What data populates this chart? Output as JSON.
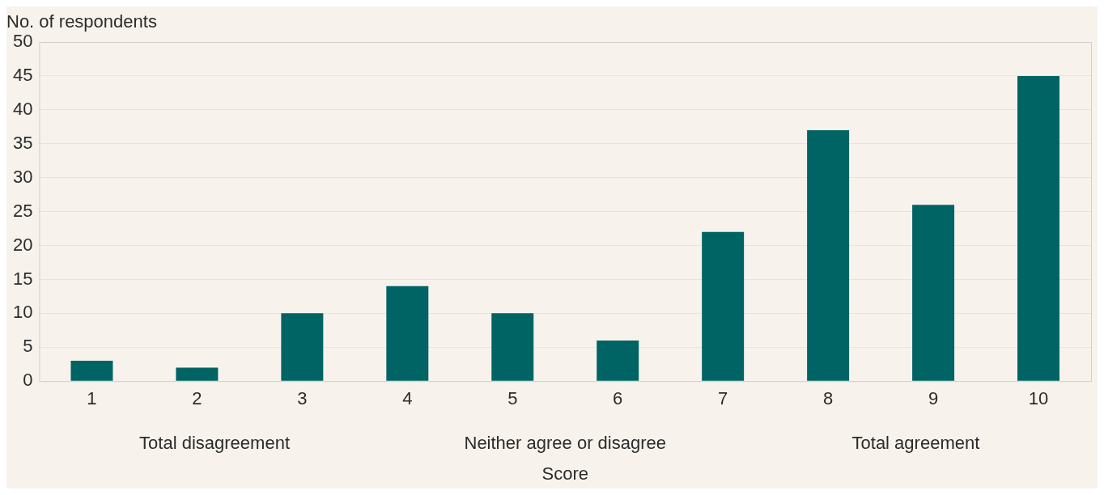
{
  "chart_data": {
    "type": "bar",
    "xlabel": "Score",
    "ylabel": "No. of respondents",
    "categories": [
      "1",
      "2",
      "3",
      "4",
      "5",
      "6",
      "7",
      "8",
      "9",
      "10"
    ],
    "values": [
      3,
      2,
      10,
      14,
      10,
      6,
      22,
      37,
      26,
      45
    ],
    "color": "#006464",
    "ylim": [
      0,
      50
    ],
    "yticks": [
      0,
      5,
      10,
      15,
      20,
      25,
      30,
      35,
      40,
      45,
      50
    ],
    "grid": "y",
    "annotations": [
      "Total disagreement",
      "Neither agree or disagree",
      "Total agreement"
    ]
  }
}
